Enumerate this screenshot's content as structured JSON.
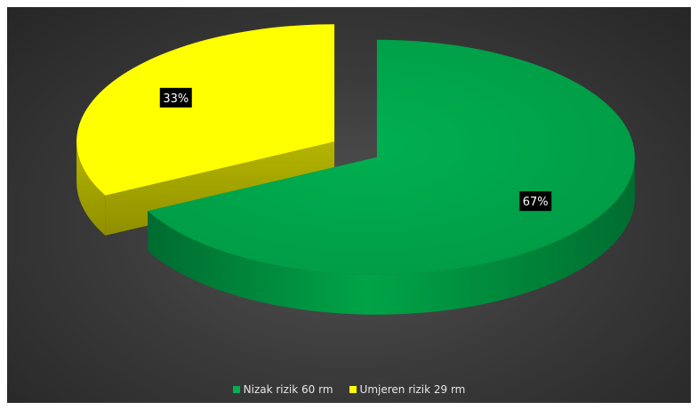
{
  "chart_data": {
    "type": "pie",
    "title": "",
    "categories": [
      "Nizak rizik 60 rm",
      "Umjeren rizik 29 rm"
    ],
    "values": [
      60,
      29
    ],
    "data_labels": [
      "67%",
      "33%"
    ],
    "colors": [
      "#00a14b",
      "#ffff00"
    ],
    "exploded": true,
    "style": "3d",
    "legend_position": "bottom"
  }
}
